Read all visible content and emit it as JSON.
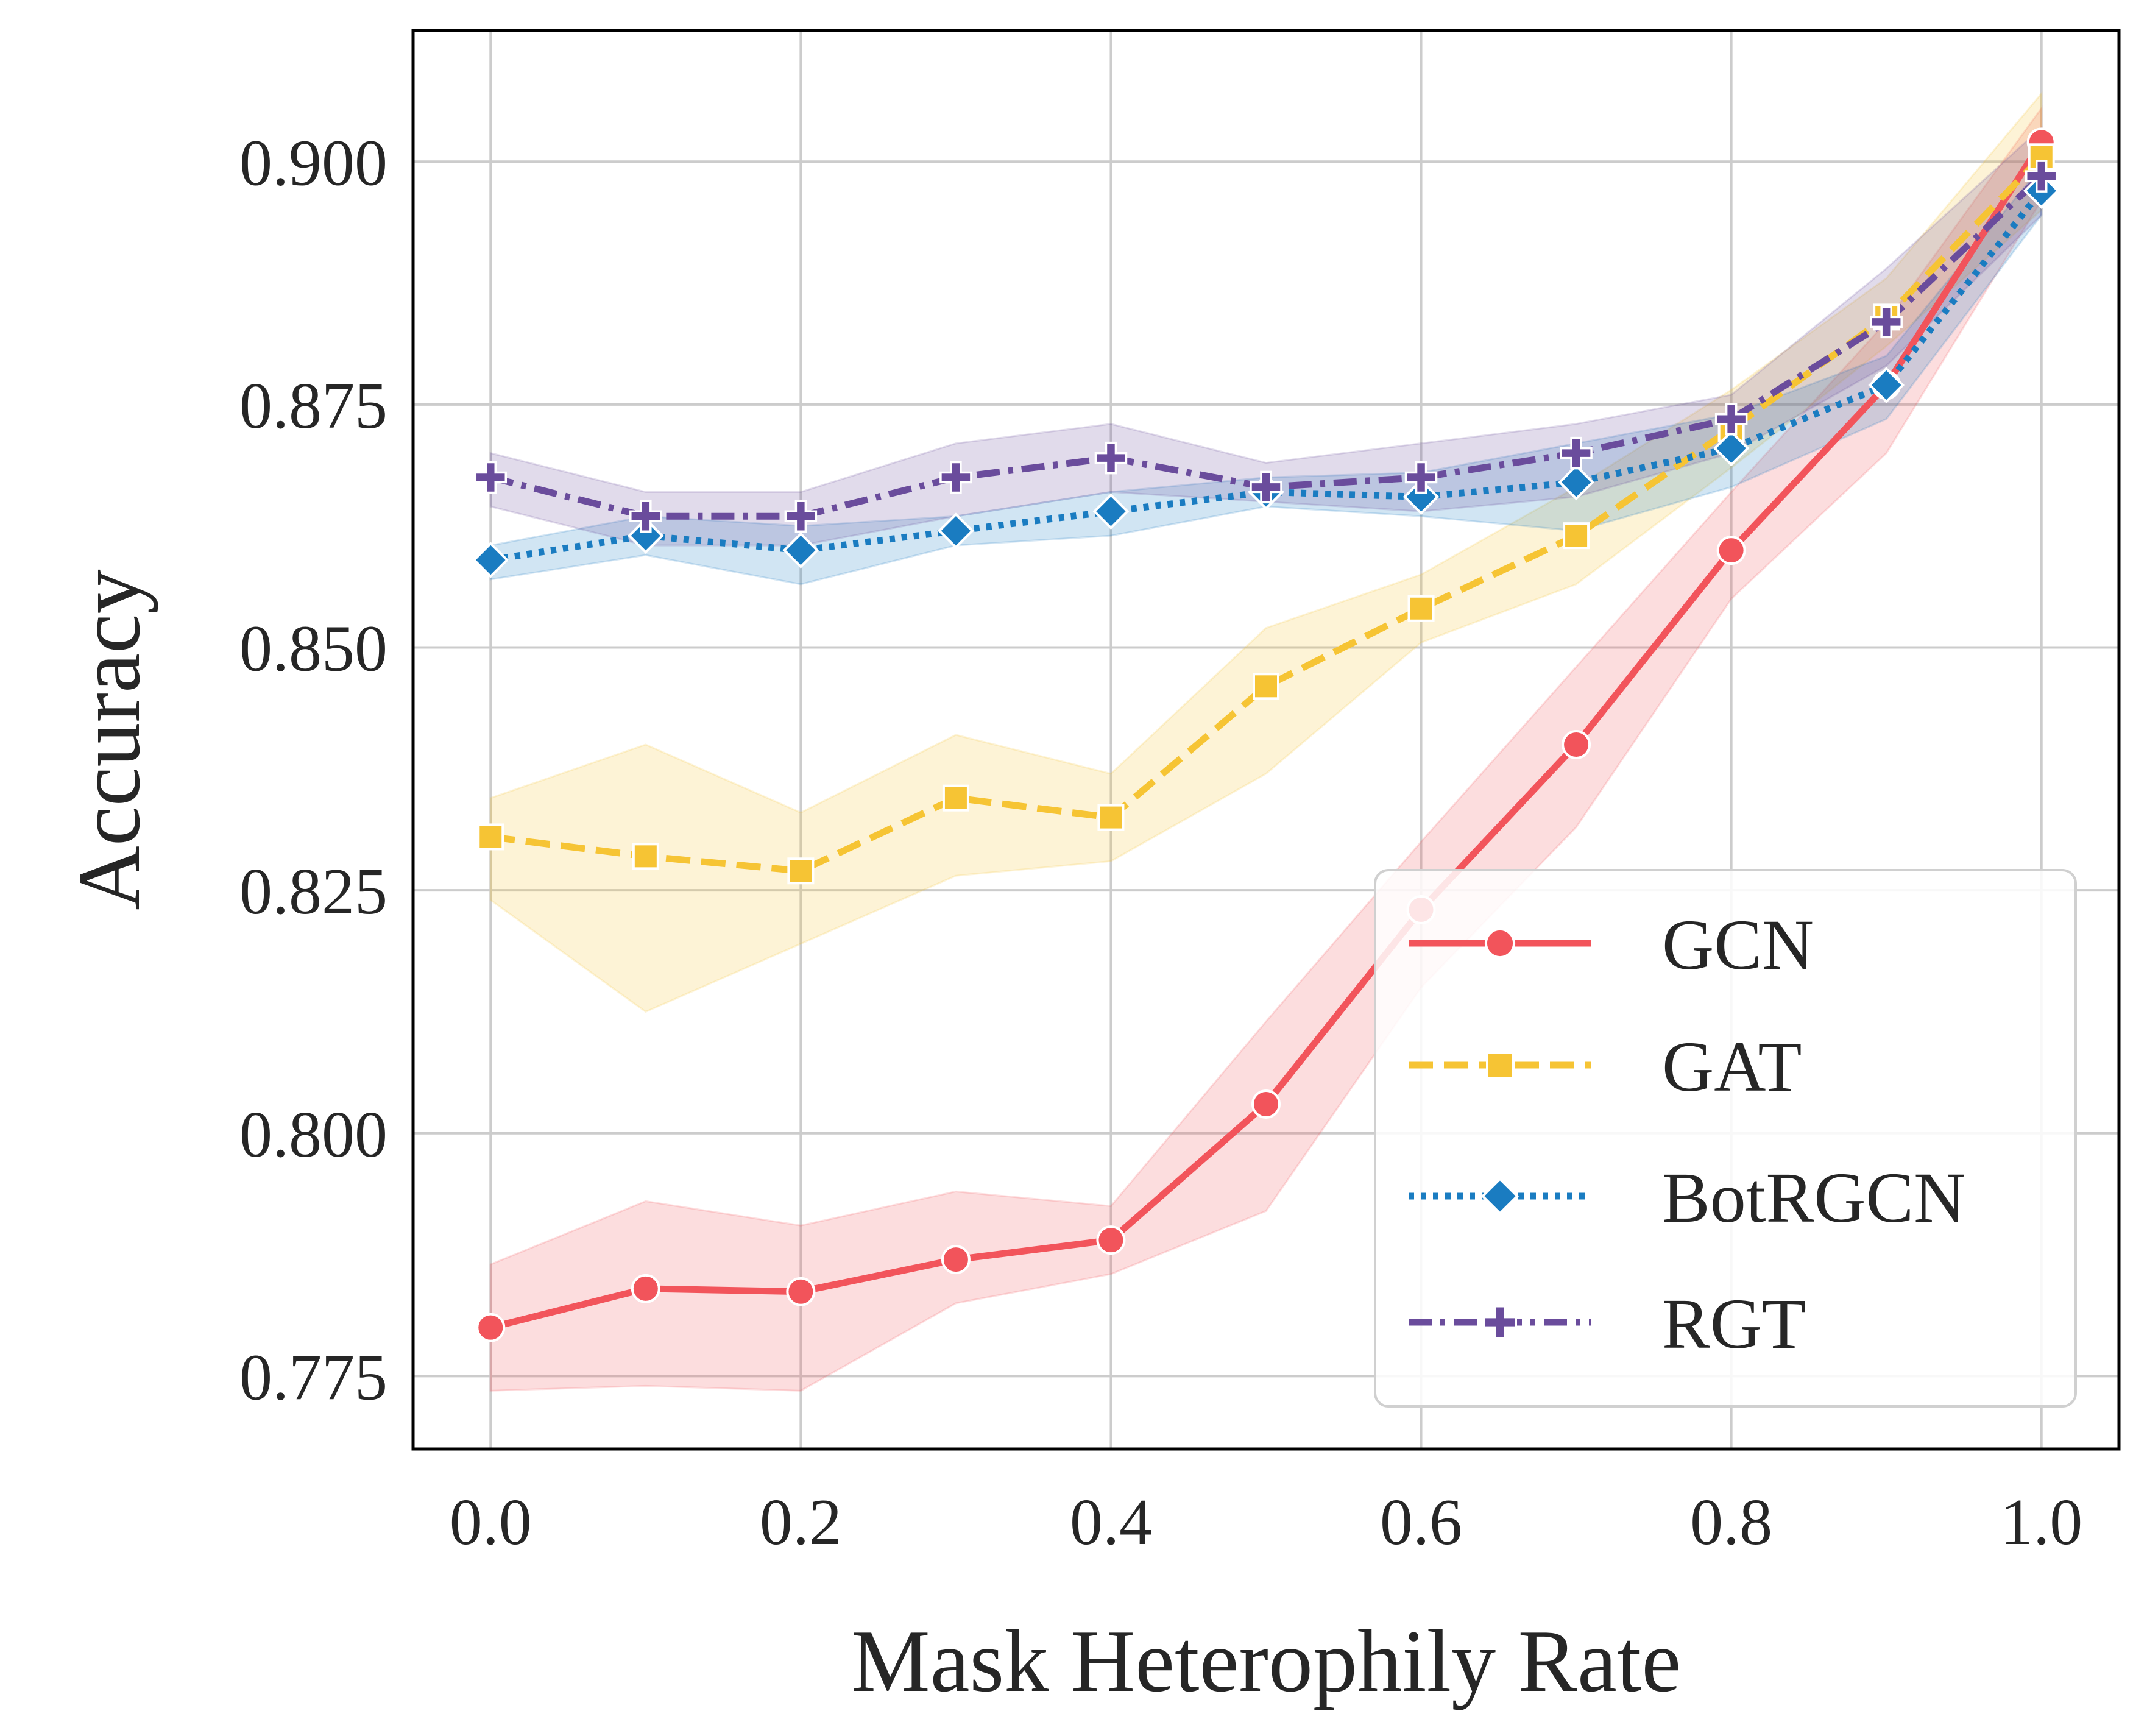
{
  "chart_data": {
    "type": "line",
    "title": "",
    "xlabel": "Mask Heterophily Rate",
    "ylabel": "Accuracy",
    "x": [
      0.0,
      0.1,
      0.2,
      0.3,
      0.4,
      0.5,
      0.6,
      0.7,
      0.8,
      0.9,
      1.0
    ],
    "xlim": [
      -0.05,
      1.05
    ],
    "ylim": [
      0.7675,
      0.9135
    ],
    "xticks": [
      0.0,
      0.2,
      0.4,
      0.6,
      0.8,
      1.0
    ],
    "xtick_labels": [
      "0.0",
      "0.2",
      "0.4",
      "0.6",
      "0.8",
      "1.0"
    ],
    "yticks": [
      0.775,
      0.8,
      0.825,
      0.85,
      0.875,
      0.9
    ],
    "ytick_labels": [
      "0.775",
      "0.800",
      "0.825",
      "0.850",
      "0.875",
      "0.900"
    ],
    "grid": true,
    "legend_position": "lower-right",
    "series": [
      {
        "name": "GCN",
        "color": "#f2545b",
        "linestyle": "solid",
        "marker": "circle",
        "values": [
          0.78,
          0.784,
          0.7837,
          0.787,
          0.789,
          0.803,
          0.823,
          0.84,
          0.86,
          0.877,
          0.902
        ],
        "lower": [
          0.7735,
          0.774,
          0.7735,
          0.7825,
          0.7855,
          0.792,
          0.815,
          0.8315,
          0.855,
          0.87,
          0.896
        ],
        "upper": [
          0.7865,
          0.793,
          0.7905,
          0.794,
          0.7925,
          0.8115,
          0.83,
          0.848,
          0.866,
          0.8835,
          0.9055
        ]
      },
      {
        "name": "GAT",
        "color": "#f6c434",
        "linestyle": "dashed",
        "marker": "square",
        "values": [
          0.8305,
          0.8285,
          0.827,
          0.8345,
          0.8325,
          0.846,
          0.854,
          0.8615,
          0.8725,
          0.884,
          0.9005
        ],
        "lower": [
          0.824,
          0.8125,
          0.8195,
          0.8265,
          0.828,
          0.837,
          0.8505,
          0.8565,
          0.8685,
          0.881,
          0.895
        ],
        "upper": [
          0.8345,
          0.84,
          0.833,
          0.841,
          0.837,
          0.852,
          0.8575,
          0.8665,
          0.8765,
          0.888,
          0.907
        ]
      },
      {
        "name": "BotRGCN",
        "color": "#1a7cc1",
        "linestyle": "dotted",
        "marker": "diamond",
        "values": [
          0.859,
          0.8615,
          0.86,
          0.862,
          0.864,
          0.866,
          0.8655,
          0.867,
          0.8705,
          0.877,
          0.897
        ],
        "lower": [
          0.857,
          0.8595,
          0.8565,
          0.8605,
          0.8615,
          0.8645,
          0.8635,
          0.862,
          0.8665,
          0.8735,
          0.8945
        ],
        "upper": [
          0.8605,
          0.8635,
          0.8625,
          0.8635,
          0.866,
          0.8675,
          0.868,
          0.871,
          0.874,
          0.88,
          0.8995
        ]
      },
      {
        "name": "RGT",
        "color": "#6a4c9c",
        "linestyle": "dashdot",
        "marker": "plus",
        "values": [
          0.8675,
          0.8635,
          0.8635,
          0.8675,
          0.8695,
          0.8665,
          0.8675,
          0.87,
          0.8735,
          0.8835,
          0.8985
        ],
        "lower": [
          0.8645,
          0.8605,
          0.8605,
          0.8635,
          0.866,
          0.865,
          0.864,
          0.8655,
          0.87,
          0.879,
          0.8945
        ],
        "upper": [
          0.87,
          0.866,
          0.866,
          0.871,
          0.873,
          0.869,
          0.871,
          0.873,
          0.876,
          0.889,
          0.9035
        ]
      }
    ]
  }
}
